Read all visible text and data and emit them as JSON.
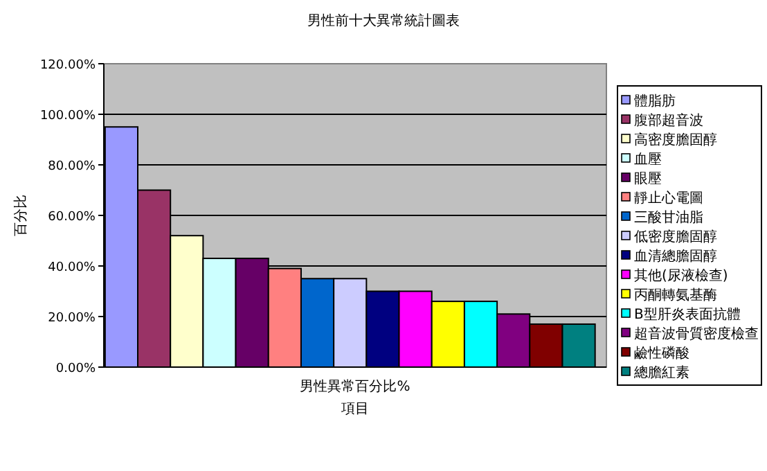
{
  "chart_data": {
    "type": "bar",
    "title": "男性前十大異常統計圖表",
    "xlabel": "項目",
    "ylabel": "百分比",
    "categories": [
      "男性異常百分比%"
    ],
    "ylim": [
      0,
      120
    ],
    "yticks": [
      {
        "value": 0,
        "label": "0.00%"
      },
      {
        "value": 20,
        "label": "20.00%"
      },
      {
        "value": 40,
        "label": "40.00%"
      },
      {
        "value": 60,
        "label": "60.00%"
      },
      {
        "value": 80,
        "label": "80.00%"
      },
      {
        "value": 100,
        "label": "100.00%"
      },
      {
        "value": 120,
        "label": "120.00%"
      }
    ],
    "grid": "y",
    "legend": "right",
    "series": [
      {
        "name": "體脂肪",
        "color": "#9999ff",
        "values": [
          95
        ]
      },
      {
        "name": "腹部超音波",
        "color": "#993366",
        "values": [
          70
        ]
      },
      {
        "name": "高密度膽固醇",
        "color": "#ffffcc",
        "values": [
          52
        ]
      },
      {
        "name": "血壓",
        "color": "#ccffff",
        "values": [
          43
        ]
      },
      {
        "name": "眼壓",
        "color": "#660066",
        "values": [
          43
        ]
      },
      {
        "name": "靜止心電圖",
        "color": "#ff8080",
        "values": [
          39
        ]
      },
      {
        "name": "三酸甘油脂",
        "color": "#0066cc",
        "values": [
          35
        ]
      },
      {
        "name": "低密度膽固醇",
        "color": "#ccccff",
        "values": [
          35
        ]
      },
      {
        "name": "血清總膽固醇",
        "color": "#000080",
        "values": [
          30
        ]
      },
      {
        "name": "其他(尿液檢查)",
        "color": "#ff00ff",
        "values": [
          30
        ]
      },
      {
        "name": "丙酮轉氨基酶",
        "color": "#ffff00",
        "values": [
          26
        ]
      },
      {
        "name": "B型肝炎表面抗體",
        "color": "#00ffff",
        "values": [
          26
        ]
      },
      {
        "name": "超音波骨質密度檢查",
        "color": "#800080",
        "values": [
          21
        ]
      },
      {
        "name": "鹼性磷酸",
        "color": "#800000",
        "values": [
          17
        ]
      },
      {
        "name": "總膽紅素",
        "color": "#008080",
        "values": [
          17
        ]
      }
    ]
  }
}
